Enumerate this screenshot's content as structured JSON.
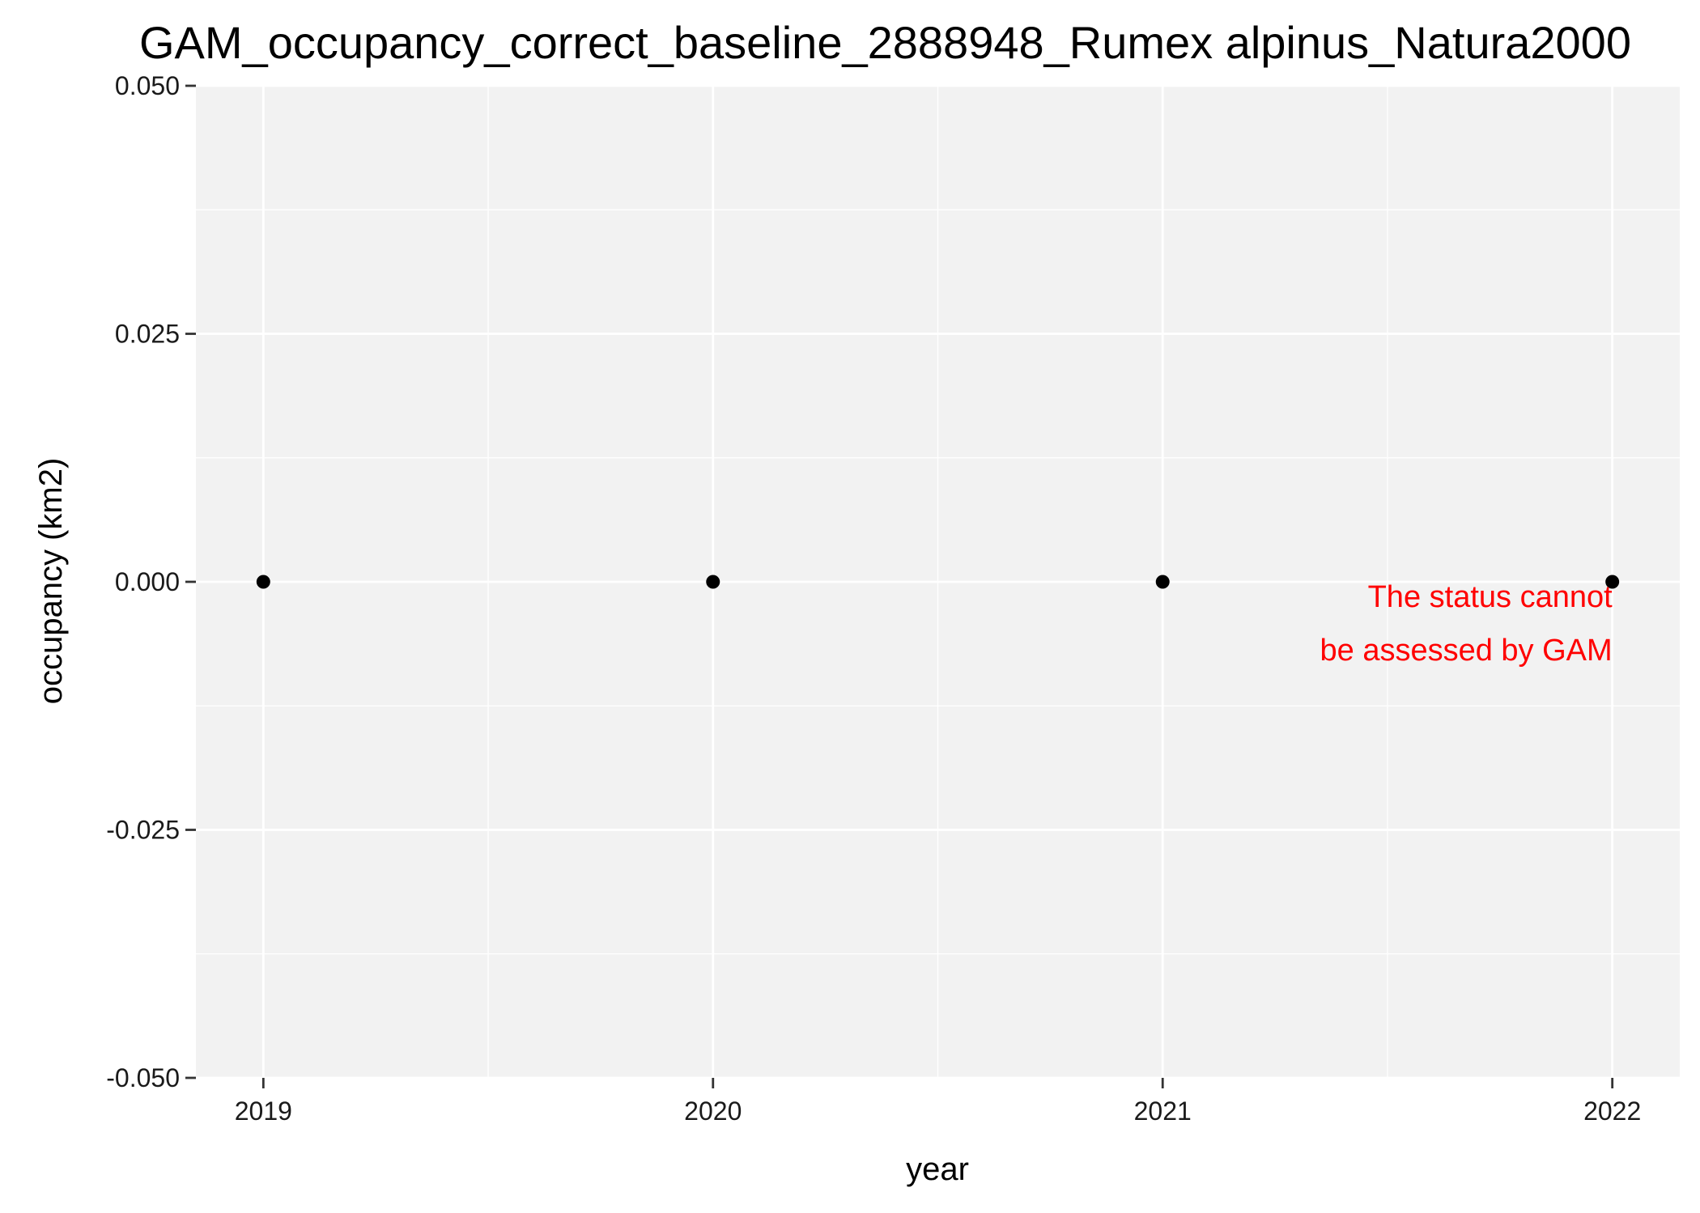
{
  "chart_data": {
    "type": "scatter",
    "title": "GAM_occupancy_correct_baseline_2888948_Rumex alpinus_Natura2000",
    "xlabel": "year",
    "ylabel": "occupancy (km2)",
    "x_ticks": [
      2019,
      2020,
      2021,
      2022
    ],
    "x_tick_labels": [
      "2019",
      "2020",
      "2021",
      "2022"
    ],
    "xlim": [
      2018.85,
      2022.15
    ],
    "y_ticks": [
      -0.05,
      -0.025,
      0,
      0.025,
      0.05
    ],
    "y_tick_labels": [
      "-0.050",
      "-0.025",
      "0.000",
      "0.025",
      "0.050"
    ],
    "ylim": [
      -0.05,
      0.05
    ],
    "grid": true,
    "panel_background": "#f2f2f2",
    "grid_color": "#ffffff",
    "point_color": "#000000",
    "points": [
      {
        "x": 2019,
        "y": 0
      },
      {
        "x": 2020,
        "y": 0
      },
      {
        "x": 2021,
        "y": 0
      },
      {
        "x": 2022,
        "y": 0
      }
    ],
    "annotation": {
      "lines": [
        "The status cannot",
        "be assessed by GAM"
      ],
      "x": 2022,
      "y": 0,
      "color": "#ff0000"
    }
  }
}
